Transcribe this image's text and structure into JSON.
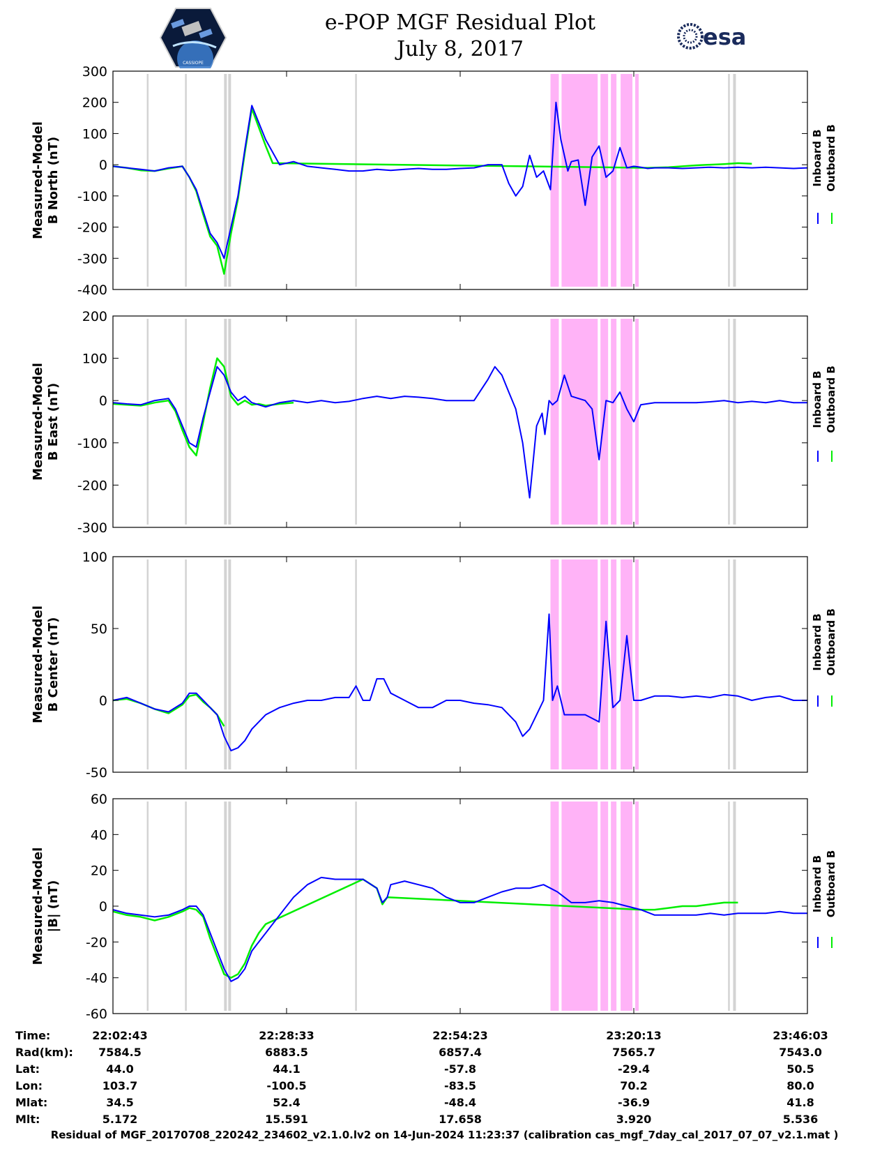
{
  "header": {
    "title_line1": "e-POP MGF Residual Plot",
    "title_line2": "July 8, 2017",
    "logo_left": "cassiope-mission-logo",
    "logo_right_text": "esa",
    "logo_left_text": "CASSIOPE"
  },
  "legend": {
    "inboard_label": "Inboard B",
    "outboard_label": "Outboard B",
    "inboard_color": "#0000ff",
    "outboard_color": "#00ee00"
  },
  "colors": {
    "gap_band": "#d3d3d3",
    "pink_band": "#ffb3f7"
  },
  "chart_data": [
    {
      "type": "line",
      "ylabel_line1": "Measured-Model",
      "ylabel_line2": "B North (nT)",
      "ylim": [
        -400,
        300
      ],
      "yticks": [
        "300",
        "200",
        "100",
        "0",
        "-100",
        "-200",
        "-300",
        "-400"
      ],
      "series": [
        {
          "name": "Inboard B",
          "x": [
            0,
            2,
            4,
            6,
            8,
            10,
            11,
            12,
            13,
            14,
            15,
            16,
            17,
            18,
            19,
            20,
            22,
            24,
            26,
            28,
            30,
            32,
            34,
            36,
            38,
            40,
            42,
            44,
            46,
            48,
            50,
            52,
            54,
            56,
            57,
            58,
            59,
            60,
            61,
            62,
            63,
            63.8,
            64.5,
            65.5,
            66,
            67,
            68,
            69,
            70,
            71,
            72,
            73,
            74,
            75,
            76,
            77,
            78,
            80,
            82,
            84,
            86,
            88,
            90,
            92,
            94,
            96,
            98,
            100
          ],
          "y": [
            -5,
            -10,
            -15,
            -20,
            -10,
            -5,
            -40,
            -80,
            -150,
            -220,
            -250,
            -300,
            -200,
            -100,
            50,
            190,
            80,
            0,
            10,
            -5,
            -10,
            -15,
            -20,
            -20,
            -15,
            -18,
            -15,
            -12,
            -15,
            -15,
            -12,
            -10,
            0,
            0,
            -60,
            -100,
            -70,
            30,
            -40,
            -20,
            -80,
            200,
            80,
            -20,
            10,
            15,
            -130,
            25,
            60,
            -40,
            -20,
            55,
            -10,
            -5,
            -8,
            -12,
            -10,
            -10,
            -12,
            -10,
            -8,
            -10,
            -8,
            -10,
            -8,
            -10,
            -12,
            -10
          ]
        },
        {
          "name": "Outboard B",
          "x": [
            0,
            2,
            4,
            6,
            8,
            10,
            11,
            12,
            13,
            14,
            15,
            16,
            17,
            18,
            19,
            20,
            22,
            23,
            77,
            80,
            82,
            84,
            86,
            88,
            90,
            92
          ],
          "y": [
            -5,
            -10,
            -18,
            -20,
            -12,
            -5,
            -40,
            -85,
            -160,
            -230,
            -260,
            -350,
            -220,
            -110,
            40,
            180,
            60,
            5,
            -10,
            -8,
            -5,
            -2,
            0,
            2,
            5,
            3
          ]
        }
      ],
      "gap_x": [
        5,
        10.5,
        16.2,
        16.8,
        35,
        88.7,
        89.5
      ],
      "pink_x": [
        [
          63,
          64.2
        ],
        [
          64.6,
          69.8
        ],
        [
          70.2,
          71.3
        ],
        [
          71.7,
          72.5
        ],
        [
          73.1,
          74.8
        ],
        [
          75.2,
          75.7
        ]
      ]
    },
    {
      "type": "line",
      "ylabel_line1": "Measured-Model",
      "ylabel_line2": "B East (nT)",
      "ylim": [
        -300,
        200
      ],
      "yticks": [
        "200",
        "100",
        "0",
        "-100",
        "-200",
        "-300"
      ],
      "series": [
        {
          "name": "Inboard B",
          "x": [
            0,
            2,
            4,
            6,
            8,
            9,
            10,
            11,
            12,
            13,
            14,
            15,
            16,
            17,
            18,
            19,
            20,
            21,
            22,
            24,
            26,
            28,
            30,
            32,
            34,
            36,
            38,
            40,
            42,
            44,
            46,
            48,
            50,
            52,
            54,
            55,
            56,
            57,
            58,
            59,
            60,
            61,
            61.8,
            62.2,
            62.8,
            63.3,
            64,
            65,
            66,
            68,
            69,
            70,
            71,
            72,
            73,
            74,
            75,
            76,
            78,
            80,
            82,
            84,
            86,
            88,
            90,
            92,
            94,
            96,
            98,
            100
          ],
          "y": [
            -5,
            -8,
            -10,
            0,
            5,
            -20,
            -60,
            -100,
            -110,
            -40,
            20,
            80,
            60,
            20,
            0,
            10,
            -5,
            -10,
            -15,
            -5,
            0,
            -5,
            0,
            -5,
            -2,
            5,
            10,
            5,
            10,
            8,
            5,
            0,
            0,
            0,
            50,
            80,
            60,
            20,
            -20,
            -100,
            -230,
            -60,
            -30,
            -80,
            0,
            -10,
            0,
            60,
            10,
            0,
            -20,
            -140,
            0,
            -5,
            20,
            -20,
            -50,
            -10,
            -5,
            -5,
            -5,
            -5,
            -3,
            0,
            -5,
            -2,
            -5,
            0,
            -5,
            -5
          ]
        },
        {
          "name": "Outboard B",
          "x": [
            0,
            2,
            4,
            6,
            8,
            9,
            10,
            11,
            12,
            13,
            14,
            15,
            16,
            17,
            18,
            19,
            20,
            21,
            22,
            24,
            26
          ],
          "y": [
            -8,
            -10,
            -12,
            -5,
            0,
            -25,
            -70,
            -110,
            -130,
            -50,
            30,
            100,
            80,
            10,
            -10,
            0,
            -10,
            -8,
            -12,
            -8,
            -5
          ]
        }
      ],
      "gap_x": [
        5,
        10.5,
        16.2,
        16.8,
        35,
        88.7,
        89.5
      ],
      "pink_x": [
        [
          63,
          64.2
        ],
        [
          64.6,
          69.8
        ],
        [
          70.2,
          71.3
        ],
        [
          71.7,
          72.5
        ],
        [
          73.1,
          74.8
        ],
        [
          75.2,
          75.7
        ]
      ]
    },
    {
      "type": "line",
      "ylabel_line1": "Measured-Model",
      "ylabel_line2": "B Center (nT)",
      "ylim": [
        -50,
        100
      ],
      "yticks": [
        "100",
        "50",
        "0",
        "-50"
      ],
      "series": [
        {
          "name": "Inboard B",
          "x": [
            0,
            2,
            4,
            6,
            8,
            10,
            11,
            12,
            13,
            14,
            15,
            16,
            17,
            18,
            19,
            20,
            22,
            24,
            26,
            28,
            30,
            32,
            34,
            35,
            36,
            37,
            38,
            39,
            40,
            42,
            44,
            46,
            48,
            50,
            52,
            54,
            56,
            57,
            58,
            59,
            60,
            61,
            62,
            62.8,
            63.3,
            64,
            65,
            66,
            68,
            70,
            71,
            72,
            73,
            74,
            75,
            76,
            78,
            80,
            82,
            84,
            86,
            88,
            90,
            92,
            94,
            96,
            98,
            100
          ],
          "y": [
            0,
            2,
            -2,
            -6,
            -8,
            -2,
            5,
            5,
            0,
            -5,
            -10,
            -25,
            -35,
            -33,
            -28,
            -20,
            -10,
            -5,
            -2,
            0,
            0,
            2,
            2,
            10,
            0,
            0,
            15,
            15,
            5,
            0,
            -5,
            -5,
            0,
            0,
            -2,
            -3,
            -5,
            -10,
            -15,
            -25,
            -20,
            -10,
            0,
            60,
            0,
            10,
            -10,
            -10,
            -10,
            -15,
            55,
            -5,
            0,
            45,
            0,
            0,
            3,
            3,
            2,
            3,
            2,
            4,
            3,
            0,
            2,
            3,
            0,
            0
          ]
        },
        {
          "name": "Outboard B",
          "x": [
            0,
            2,
            4,
            6,
            8,
            10,
            11,
            12,
            13,
            14,
            15,
            16
          ],
          "y": [
            0,
            1,
            -2,
            -6,
            -9,
            -3,
            3,
            4,
            -1,
            -5,
            -10,
            -18
          ]
        }
      ],
      "gap_x": [
        5,
        10.5,
        16.2,
        16.8,
        35,
        88.7,
        89.5
      ],
      "pink_x": [
        [
          63,
          64.2
        ],
        [
          64.6,
          69.8
        ],
        [
          70.2,
          71.3
        ],
        [
          71.7,
          72.5
        ],
        [
          73.1,
          74.8
        ],
        [
          75.2,
          75.7
        ]
      ]
    },
    {
      "type": "line",
      "ylabel_line1": "Measured-Model",
      "ylabel_line2": "|B| (nT)",
      "ylim": [
        -60,
        60
      ],
      "yticks": [
        "60",
        "40",
        "20",
        "0",
        "-20",
        "-40",
        "-60"
      ],
      "series": [
        {
          "name": "Inboard B",
          "x": [
            0,
            2,
            4,
            6,
            8,
            10,
            11,
            12,
            13,
            14,
            15,
            16,
            17,
            18,
            19,
            20,
            21,
            22,
            24,
            26,
            28,
            30,
            32,
            34,
            36,
            38,
            38.8,
            39.5,
            40,
            42,
            44,
            46,
            48,
            50,
            52,
            54,
            56,
            58,
            60,
            62,
            63,
            64,
            65,
            66,
            68,
            70,
            72,
            74,
            76,
            78,
            80,
            82,
            84,
            86,
            88,
            90,
            92,
            94,
            96,
            98,
            100
          ],
          "y": [
            -2,
            -4,
            -5,
            -6,
            -5,
            -2,
            0,
            0,
            -5,
            -15,
            -25,
            -35,
            -42,
            -40,
            -35,
            -25,
            -20,
            -15,
            -5,
            5,
            12,
            16,
            15,
            15,
            15,
            10,
            2,
            5,
            12,
            14,
            12,
            10,
            5,
            2,
            2,
            5,
            8,
            10,
            10,
            12,
            10,
            8,
            5,
            2,
            2,
            3,
            2,
            0,
            -2,
            -5,
            -5,
            -5,
            -5,
            -4,
            -5,
            -4,
            -4,
            -4,
            -3,
            -4,
            -4
          ]
        },
        {
          "name": "Outboard B",
          "x": [
            0,
            2,
            4,
            6,
            8,
            10,
            11,
            12,
            13,
            14,
            15,
            16,
            17,
            18,
            19,
            20,
            21,
            22,
            36,
            38,
            38.8,
            39.5,
            76,
            78,
            80,
            82,
            84,
            86,
            88,
            90
          ],
          "y": [
            -3,
            -5,
            -6,
            -8,
            -6,
            -3,
            -1,
            -2,
            -6,
            -18,
            -28,
            -38,
            -40,
            -38,
            -32,
            -22,
            -15,
            -10,
            15,
            10,
            1,
            5,
            -2,
            -2,
            -1,
            0,
            0,
            1,
            2,
            2
          ]
        }
      ],
      "gap_x": [
        5,
        10.5,
        16.2,
        16.8,
        35,
        88.7,
        89.5
      ],
      "pink_x": [
        [
          63,
          64.2
        ],
        [
          64.6,
          69.8
        ],
        [
          70.2,
          71.3
        ],
        [
          71.7,
          72.5
        ],
        [
          73.1,
          74.8
        ],
        [
          75.2,
          75.7
        ]
      ]
    }
  ],
  "info_table": {
    "rows": [
      {
        "label": "Time:",
        "values": [
          "22:02:43",
          "22:28:33",
          "22:54:23",
          "23:20:13",
          "23:46:03"
        ]
      },
      {
        "label": "Rad(km):",
        "values": [
          "7584.5",
          "6883.5",
          "6857.4",
          "7565.7",
          "7543.0"
        ]
      },
      {
        "label": "Lat:",
        "values": [
          "44.0",
          "44.1",
          "-57.8",
          "-29.4",
          "50.5"
        ]
      },
      {
        "label": "Lon:",
        "values": [
          "103.7",
          "-100.5",
          "-83.5",
          "70.2",
          "80.0"
        ]
      },
      {
        "label": "Mlat:",
        "values": [
          "34.5",
          "52.4",
          "-48.4",
          "-36.9",
          "41.8"
        ]
      },
      {
        "label": "Mlt:",
        "values": [
          "5.172",
          "15.591",
          "17.658",
          "3.920",
          "5.536"
        ]
      }
    ]
  },
  "footer": {
    "text": "Residual of MGF_20170708_220242_234602_v2.1.0.lv2 on 14-Jun-2024 11:23:37 (calibration cas_mgf_7day_cal_2017_07_07_v2.1.mat )"
  }
}
